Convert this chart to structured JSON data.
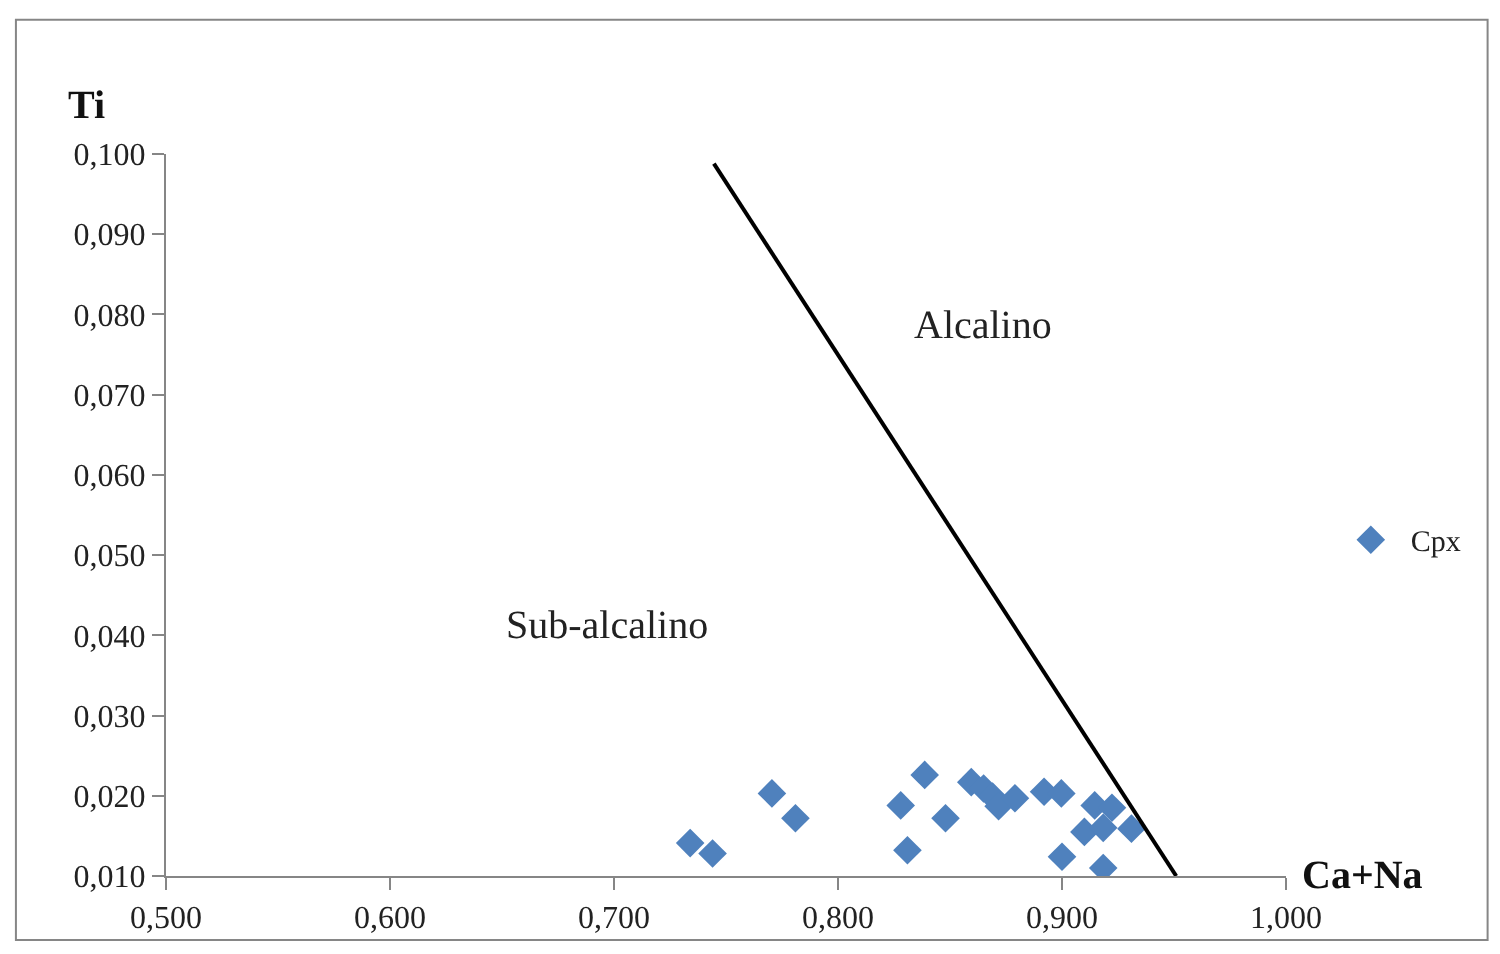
{
  "chart_data": {
    "type": "scatter",
    "xlabel": "Ca+Na",
    "ylabel": "Ti",
    "xlim": [
      0.5,
      1.0
    ],
    "ylim": [
      0.01,
      0.1
    ],
    "xticks": [
      {
        "value": 0.5,
        "label": "0,500"
      },
      {
        "value": 0.6,
        "label": "0,600"
      },
      {
        "value": 0.7,
        "label": "0,700"
      },
      {
        "value": 0.8,
        "label": "0,800"
      },
      {
        "value": 0.9,
        "label": "0,900"
      },
      {
        "value": 1.0,
        "label": "1,000"
      }
    ],
    "yticks": [
      {
        "value": 0.01,
        "label": "0,010"
      },
      {
        "value": 0.02,
        "label": "0,020"
      },
      {
        "value": 0.03,
        "label": "0,030"
      },
      {
        "value": 0.04,
        "label": "0,040"
      },
      {
        "value": 0.05,
        "label": "0,050"
      },
      {
        "value": 0.06,
        "label": "0,060"
      },
      {
        "value": 0.07,
        "label": "0,070"
      },
      {
        "value": 0.08,
        "label": "0,080"
      },
      {
        "value": 0.09,
        "label": "0,090"
      },
      {
        "value": 0.1,
        "label": "0,100"
      }
    ],
    "grid": false,
    "legend": "right",
    "series": [
      {
        "name": "Cpx",
        "color": "#4f81bd",
        "marker": "diamond",
        "x": [
          0.734,
          0.744,
          0.7705,
          0.781,
          0.828,
          0.831,
          0.8387,
          0.848,
          0.8595,
          0.865,
          0.869,
          0.8717,
          0.879,
          0.892,
          0.8997,
          0.9,
          0.91,
          0.9146,
          0.9223,
          0.9184,
          0.931,
          0.9184
        ],
        "values": [
          0.0141,
          0.0128,
          0.0203,
          0.0172,
          0.0188,
          0.0132,
          0.0226,
          0.0172,
          0.0217,
          0.0209,
          0.0199,
          0.0187,
          0.0197,
          0.0205,
          0.0203,
          0.0124,
          0.0155,
          0.0188,
          0.0185,
          0.016,
          0.0159,
          0.011
        ]
      },
      {
        "color": "#000000",
        "type": "line",
        "marker": "none",
        "x": [
          0.7446,
          0.951
        ],
        "values": [
          0.0988,
          0.01
        ]
      }
    ],
    "annotations": [
      "Alcalino",
      "Sub-alcalino"
    ]
  }
}
